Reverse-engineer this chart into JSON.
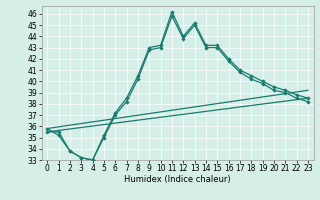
{
  "xlabel": "Humidex (Indice chaleur)",
  "background_color": "#d6eee8",
  "line_color": "#1a7a6e",
  "xlim": [
    -0.5,
    23.5
  ],
  "ylim": [
    33,
    46.7
  ],
  "yticks": [
    33,
    34,
    35,
    36,
    37,
    38,
    39,
    40,
    41,
    42,
    43,
    44,
    45,
    46
  ],
  "xticks": [
    0,
    1,
    2,
    3,
    4,
    5,
    6,
    7,
    8,
    9,
    10,
    11,
    12,
    13,
    14,
    15,
    16,
    17,
    18,
    19,
    20,
    21,
    22,
    23
  ],
  "line1_x": [
    0,
    1,
    2,
    3,
    4,
    5,
    6,
    7,
    8,
    9,
    10,
    11,
    12,
    13,
    14,
    15,
    16,
    17,
    18,
    19,
    20,
    21,
    22,
    23
  ],
  "line1_y": [
    35.5,
    35.5,
    33.8,
    33.2,
    33.0,
    35.2,
    37.2,
    38.5,
    40.5,
    43.0,
    43.2,
    46.2,
    44.0,
    45.2,
    43.2,
    43.2,
    42.0,
    41.0,
    40.5,
    40.0,
    39.5,
    39.2,
    38.8,
    38.5
  ],
  "line2_x": [
    0,
    1,
    2,
    3,
    4,
    5,
    6,
    7,
    8,
    9,
    10,
    11,
    12,
    13,
    14,
    15,
    16,
    17,
    18,
    19,
    20,
    21,
    22,
    23
  ],
  "line2_y": [
    35.8,
    35.2,
    33.8,
    33.2,
    33.0,
    35.0,
    37.0,
    38.2,
    40.2,
    42.8,
    43.0,
    45.8,
    43.8,
    45.0,
    43.0,
    43.0,
    41.8,
    40.8,
    40.2,
    39.8,
    39.2,
    39.0,
    38.5,
    38.2
  ],
  "line3_x": [
    0,
    23
  ],
  "line3_y": [
    35.5,
    38.5
  ],
  "line4_x": [
    0,
    23
  ],
  "line4_y": [
    35.8,
    39.2
  ],
  "grid_color": "#ffffff",
  "tick_labelsize": 5.5,
  "xlabel_fontsize": 6,
  "linewidth": 0.9,
  "markersize": 2.2
}
